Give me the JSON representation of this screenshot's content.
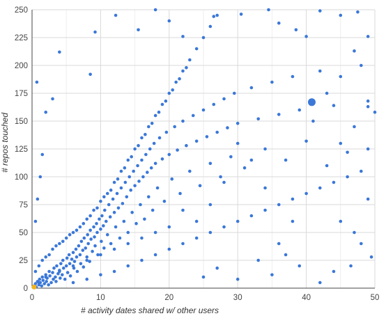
{
  "chart_data": {
    "type": "scatter",
    "title": "",
    "xlabel": "# activity dates shared w/ other users",
    "ylabel": "# repos touched",
    "xlim": [
      0,
      50
    ],
    "ylim": [
      0,
      250
    ],
    "x_ticks": [
      0,
      10,
      20,
      30,
      40,
      50
    ],
    "y_ticks": [
      0,
      25,
      50,
      75,
      100,
      125,
      150,
      175,
      200,
      225,
      250
    ],
    "x_tick_labels": [
      "0",
      "10",
      "20",
      "30",
      "40",
      "50"
    ],
    "y_tick_labels": [
      "0",
      "25",
      "50",
      "75",
      "100",
      "125",
      "150",
      "175",
      "200",
      "225",
      "250"
    ],
    "grid": true,
    "colors": {
      "point": "#3b78d8",
      "highlight_point": "#3b78d8",
      "origin_marker": "#f2b51d",
      "grid_major": "#d9d9d9",
      "grid_minor": "#eeeeee",
      "axis": "#444444"
    },
    "series": [
      {
        "points": [
          [
            0.3,
            2
          ],
          [
            0.5,
            4
          ],
          [
            0.6,
            1
          ],
          [
            0.8,
            6
          ],
          [
            1.0,
            3
          ],
          [
            1.1,
            8
          ],
          [
            1.2,
            5
          ],
          [
            1.4,
            2
          ],
          [
            1.5,
            10
          ],
          [
            1.6,
            7
          ],
          [
            1.8,
            4
          ],
          [
            2.0,
            12
          ],
          [
            2.1,
            6
          ],
          [
            2.2,
            9
          ],
          [
            2.4,
            3
          ],
          [
            2.5,
            15
          ],
          [
            2.6,
            11
          ],
          [
            2.8,
            5
          ],
          [
            3.0,
            14
          ],
          [
            3.1,
            8
          ],
          [
            3.2,
            18
          ],
          [
            3.4,
            10
          ],
          [
            3.5,
            6
          ],
          [
            3.6,
            20
          ],
          [
            3.8,
            13
          ],
          [
            4.0,
            16
          ],
          [
            4.1,
            9
          ],
          [
            4.2,
            22
          ],
          [
            4.4,
            12
          ],
          [
            4.5,
            25
          ],
          [
            4.6,
            18
          ],
          [
            4.8,
            8
          ],
          [
            5.0,
            20
          ],
          [
            5.1,
            27
          ],
          [
            5.2,
            14
          ],
          [
            5.4,
            30
          ],
          [
            5.5,
            22
          ],
          [
            5.6,
            11
          ],
          [
            5.8,
            26
          ],
          [
            6.0,
            32
          ],
          [
            6.1,
            18
          ],
          [
            6.2,
            24
          ],
          [
            6.4,
            35
          ],
          [
            6.5,
            28
          ],
          [
            6.6,
            15
          ],
          [
            6.8,
            38
          ],
          [
            7.0,
            30
          ],
          [
            7.1,
            22
          ],
          [
            7.2,
            42
          ],
          [
            7.4,
            34
          ],
          [
            7.5,
            19
          ],
          [
            7.6,
            45
          ],
          [
            7.8,
            36
          ],
          [
            8.0,
            28
          ],
          [
            8.1,
            48
          ],
          [
            8.2,
            40
          ],
          [
            8.4,
            24
          ],
          [
            8.5,
            52
          ],
          [
            8.6,
            44
          ],
          [
            8.8,
            33
          ],
          [
            9.0,
            55
          ],
          [
            9.1,
            46
          ],
          [
            9.2,
            38
          ],
          [
            9.4,
            58
          ],
          [
            9.5,
            50
          ],
          [
            9.6,
            30
          ],
          [
            9.8,
            62
          ],
          [
            10.0,
            53
          ],
          [
            10.1,
            42
          ],
          [
            10.2,
            65
          ],
          [
            10.4,
            56
          ],
          [
            10.5,
            36
          ],
          [
            10.6,
            70
          ],
          [
            10.8,
            60
          ],
          [
            11.0,
            48
          ],
          [
            11.2,
            75
          ],
          [
            11.4,
            64
          ],
          [
            11.5,
            40
          ],
          [
            11.8,
            80
          ],
          [
            12.0,
            68
          ],
          [
            12.2,
            55
          ],
          [
            12.4,
            85
          ],
          [
            12.6,
            72
          ],
          [
            12.8,
            45
          ],
          [
            13.0,
            90
          ],
          [
            13.2,
            76
          ],
          [
            13.4,
            60
          ],
          [
            13.6,
            95
          ],
          [
            13.8,
            82
          ],
          [
            14.0,
            50
          ],
          [
            14.2,
            100
          ],
          [
            14.4,
            88
          ],
          [
            14.6,
            68
          ],
          [
            14.8,
            105
          ],
          [
            15.0,
            92
          ],
          [
            15.2,
            58
          ],
          [
            15.4,
            110
          ],
          [
            15.6,
            96
          ],
          [
            15.8,
            75
          ],
          [
            16.0,
            115
          ],
          [
            16.2,
            100
          ],
          [
            16.4,
            62
          ],
          [
            16.6,
            120
          ],
          [
            16.8,
            104
          ],
          [
            17.0,
            82
          ],
          [
            17.2,
            125
          ],
          [
            17.4,
            108
          ],
          [
            17.6,
            70
          ],
          [
            17.8,
            130
          ],
          [
            18.0,
            112
          ],
          [
            18.3,
            90
          ],
          [
            18.6,
            135
          ],
          [
            19.0,
            116
          ],
          [
            19.3,
            78
          ],
          [
            19.6,
            140
          ],
          [
            20.0,
            120
          ],
          [
            20.4,
            98
          ],
          [
            20.8,
            145
          ],
          [
            21.2,
            124
          ],
          [
            21.6,
            85
          ],
          [
            22.0,
            150
          ],
          [
            22.5,
            128
          ],
          [
            23.0,
            105
          ],
          [
            23.5,
            155
          ],
          [
            24.0,
            132
          ],
          [
            24.5,
            92
          ],
          [
            25.0,
            160
          ],
          [
            25.5,
            136
          ],
          [
            26.0,
            112
          ],
          [
            26.5,
            165
          ],
          [
            27.0,
            140
          ],
          [
            27.5,
            100
          ],
          [
            28.0,
            170
          ],
          [
            28.5,
            144
          ],
          [
            29.0,
            118
          ],
          [
            29.5,
            175
          ],
          [
            30.0,
            148
          ],
          [
            31.0,
            108
          ],
          [
            32.0,
            180
          ],
          [
            33.0,
            152
          ],
          [
            34.0,
            125
          ],
          [
            35.0,
            185
          ],
          [
            36.0,
            156
          ],
          [
            37.0,
            115
          ],
          [
            38.0,
            190
          ],
          [
            39.0,
            160
          ],
          [
            40.0,
            132
          ],
          [
            42.0,
            195
          ],
          [
            44.0,
            164
          ],
          [
            46.0,
            122
          ],
          [
            48.0,
            200
          ],
          [
            49.0,
            168
          ],
          [
            1.0,
            20
          ],
          [
            2.0,
            28
          ],
          [
            3.0,
            35
          ],
          [
            4.0,
            40
          ],
          [
            5.0,
            45
          ],
          [
            6.0,
            50
          ],
          [
            7.0,
            55
          ],
          [
            8.0,
            62
          ],
          [
            9.0,
            70
          ],
          [
            10.0,
            78
          ],
          [
            11.0,
            85
          ],
          [
            12.0,
            95
          ],
          [
            13.0,
            105
          ],
          [
            14.0,
            115
          ],
          [
            15.0,
            125
          ],
          [
            16.0,
            135
          ],
          [
            17.0,
            145
          ],
          [
            18.0,
            155
          ],
          [
            19.0,
            165
          ],
          [
            20.0,
            175
          ],
          [
            21.0,
            185
          ],
          [
            22.0,
            195
          ],
          [
            23.0,
            205
          ],
          [
            24.0,
            215
          ],
          [
            25.0,
            225
          ],
          [
            26.0,
            235
          ],
          [
            27.0,
            245
          ],
          [
            6.0,
            5
          ],
          [
            8.0,
            8
          ],
          [
            10.0,
            12
          ],
          [
            12.0,
            15
          ],
          [
            14.0,
            20
          ],
          [
            16.0,
            25
          ],
          [
            18.0,
            30
          ],
          [
            20.0,
            35
          ],
          [
            22.0,
            40
          ],
          [
            24.0,
            45
          ],
          [
            26.0,
            50
          ],
          [
            28.0,
            55
          ],
          [
            30.0,
            60
          ],
          [
            32.0,
            65
          ],
          [
            34.0,
            70
          ],
          [
            36.0,
            75
          ],
          [
            38.0,
            80
          ],
          [
            40.0,
            85
          ],
          [
            42.0,
            90
          ],
          [
            44.0,
            95
          ],
          [
            46.0,
            100
          ],
          [
            48.0,
            105
          ],
          [
            0.5,
            60
          ],
          [
            0.8,
            80
          ],
          [
            1.2,
            100
          ],
          [
            1.5,
            120
          ],
          [
            2.0,
            158
          ],
          [
            0.7,
            185
          ],
          [
            3.0,
            170
          ],
          [
            4.0,
            212
          ],
          [
            8.5,
            192
          ],
          [
            9.2,
            230
          ],
          [
            12.2,
            245
          ],
          [
            15.5,
            232
          ],
          [
            18.0,
            250
          ],
          [
            20.0,
            240
          ],
          [
            22.0,
            226
          ],
          [
            26.5,
            244
          ],
          [
            30.5,
            246
          ],
          [
            34.5,
            250
          ],
          [
            36.0,
            238
          ],
          [
            38.5,
            232
          ],
          [
            40.0,
            226
          ],
          [
            42.0,
            249
          ],
          [
            45.0,
            245
          ],
          [
            47.5,
            248
          ],
          [
            49.0,
            226
          ],
          [
            47.0,
            213
          ],
          [
            49.0,
            163
          ],
          [
            50.0,
            158
          ],
          [
            25.0,
            10
          ],
          [
            27.0,
            18
          ],
          [
            30.0,
            8
          ],
          [
            33.0,
            25
          ],
          [
            35.0,
            12
          ],
          [
            37.0,
            30
          ],
          [
            39.0,
            20
          ],
          [
            42.0,
            5
          ],
          [
            44.0,
            15
          ],
          [
            46.5,
            20
          ],
          [
            48.0,
            40
          ],
          [
            49.5,
            28
          ],
          [
            45.0,
            60
          ],
          [
            47.0,
            50
          ],
          [
            49.0,
            80
          ],
          [
            43.0,
            110
          ],
          [
            45.0,
            130
          ],
          [
            47.0,
            145
          ],
          [
            49.0,
            125
          ],
          [
            41.0,
            150
          ],
          [
            43.0,
            175
          ],
          [
            45.0,
            190
          ],
          [
            38.0,
            60
          ],
          [
            36.0,
            40
          ],
          [
            34.0,
            90
          ],
          [
            32.0,
            115
          ],
          [
            30.0,
            130
          ],
          [
            28.0,
            95
          ],
          [
            26.0,
            75
          ],
          [
            24.0,
            60
          ],
          [
            22.0,
            70
          ],
          [
            20.0,
            55
          ],
          [
            18.0,
            50
          ],
          [
            16.0,
            45
          ],
          [
            14.0,
            40
          ],
          [
            12.0,
            35
          ],
          [
            10.0,
            30
          ],
          [
            8.0,
            25
          ],
          [
            6.0,
            20
          ],
          [
            4.0,
            15
          ],
          [
            2.0,
            10
          ],
          [
            1.0,
            5
          ],
          [
            0.5,
            15
          ],
          [
            1.5,
            25
          ],
          [
            2.5,
            30
          ],
          [
            3.5,
            38
          ],
          [
            4.5,
            42
          ],
          [
            5.5,
            48
          ],
          [
            6.5,
            52
          ],
          [
            7.5,
            58
          ],
          [
            8.5,
            65
          ],
          [
            9.5,
            72
          ],
          [
            10.5,
            82
          ],
          [
            11.5,
            88
          ],
          [
            12.5,
            98
          ],
          [
            13.5,
            108
          ],
          [
            14.5,
            118
          ],
          [
            15.5,
            128
          ],
          [
            16.5,
            138
          ],
          [
            17.5,
            148
          ],
          [
            18.5,
            158
          ],
          [
            19.5,
            168
          ],
          [
            20.5,
            178
          ],
          [
            21.5,
            188
          ],
          [
            22.5,
            198
          ]
        ]
      }
    ],
    "highlight_point": {
      "x": 40.8,
      "y": 167
    },
    "origin_marker": {
      "x": 0.3,
      "y": 1
    }
  }
}
